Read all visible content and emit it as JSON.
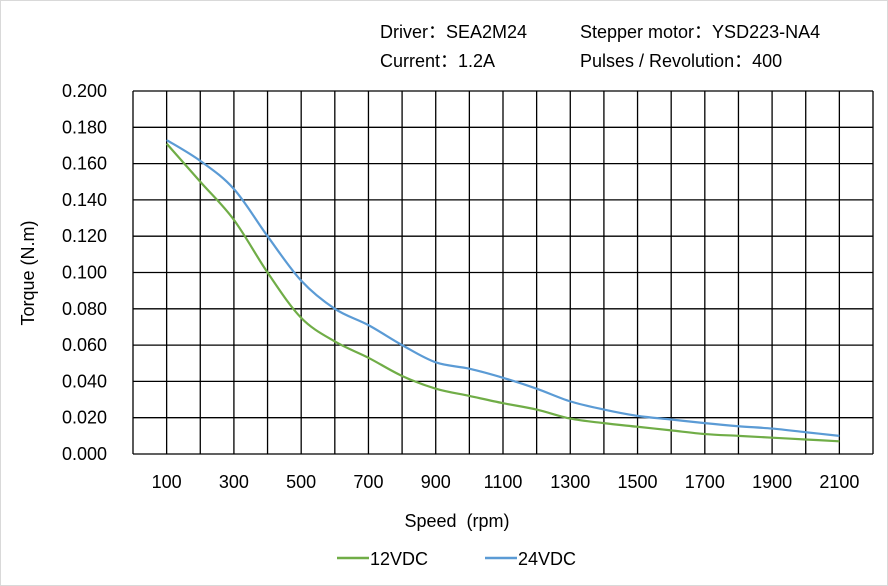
{
  "header": {
    "driver": "Driver：SEA2M24",
    "motor": "Stepper motor：YSD223-NA4",
    "current": "Current：1.2A",
    "pulses": "Pulses / Revolution：400"
  },
  "chart_data": {
    "type": "line",
    "title": "",
    "xlabel": "Speed  (rpm)",
    "ylabel": "Torque (N.m)",
    "xlim": [
      0,
      2200
    ],
    "ylim": [
      0,
      0.2
    ],
    "grid": true,
    "legend_position": "bottom",
    "x_ticks": [
      "100",
      "300",
      "500",
      "700",
      "900",
      "1100",
      "1300",
      "1500",
      "1700",
      "1900",
      "2100"
    ],
    "y_ticks": [
      "0.000",
      "0.020",
      "0.040",
      "0.060",
      "0.080",
      "0.100",
      "0.120",
      "0.140",
      "0.160",
      "0.180",
      "0.200"
    ],
    "x": [
      100,
      200,
      300,
      400,
      500,
      600,
      700,
      800,
      900,
      1000,
      1100,
      1200,
      1300,
      1400,
      1500,
      1600,
      1700,
      1800,
      1900,
      2000,
      2100
    ],
    "series": [
      {
        "name": "12VDC",
        "color": "#70ad47",
        "values": [
          0.171,
          0.15,
          0.129,
          0.1,
          0.075,
          0.062,
          0.053,
          0.043,
          0.036,
          0.032,
          0.028,
          0.0245,
          0.0195,
          0.017,
          0.015,
          0.013,
          0.011,
          0.01,
          0.009,
          0.008,
          0.007
        ]
      },
      {
        "name": "24VDC",
        "color": "#5b9bd5",
        "values": [
          0.173,
          0.1615,
          0.146,
          0.12,
          0.0955,
          0.08,
          0.071,
          0.06,
          0.0505,
          0.047,
          0.042,
          0.036,
          0.029,
          0.0245,
          0.021,
          0.019,
          0.017,
          0.0153,
          0.014,
          0.012,
          0.01
        ]
      }
    ]
  }
}
